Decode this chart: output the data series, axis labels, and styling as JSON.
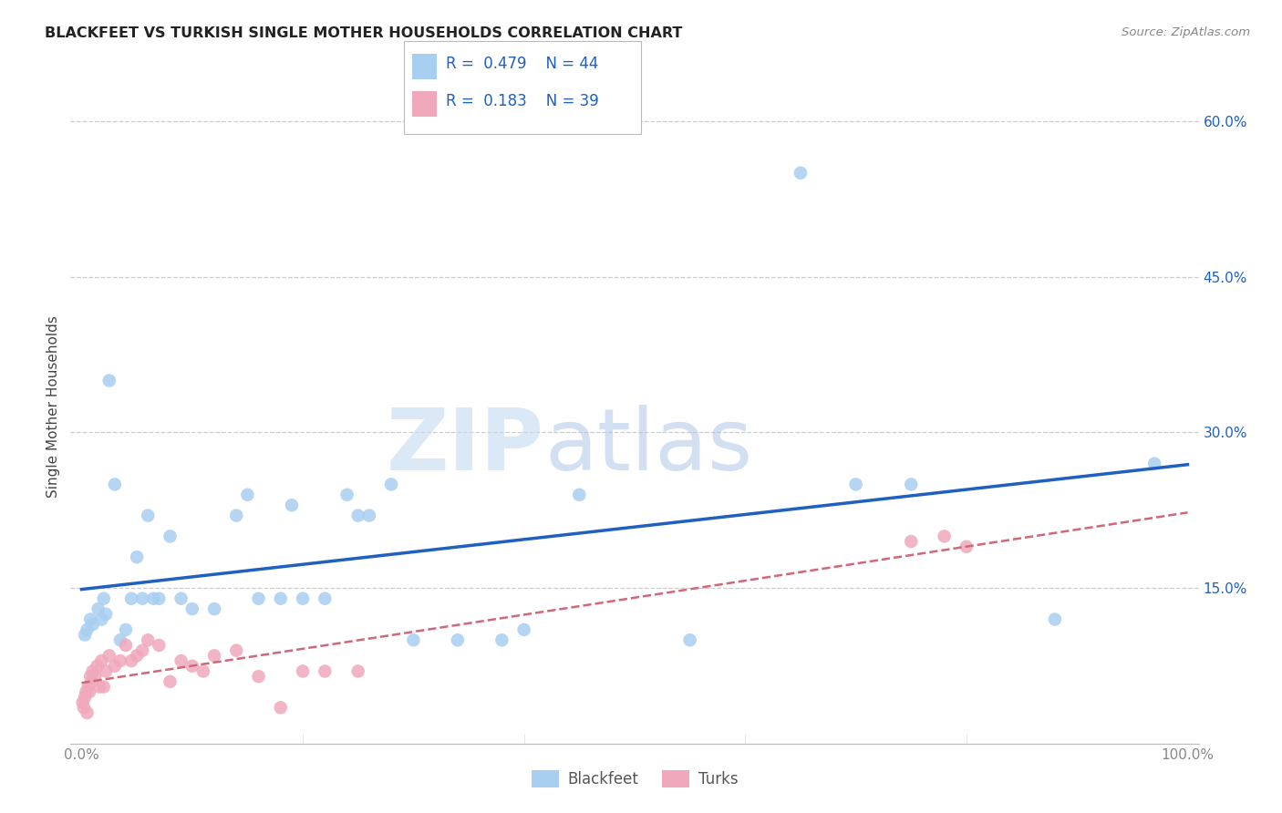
{
  "title": "BLACKFEET VS TURKISH SINGLE MOTHER HOUSEHOLDS CORRELATION CHART",
  "source": "Source: ZipAtlas.com",
  "ylabel": "Single Mother Households",
  "legend_r_blackfeet": "0.479",
  "legend_n_blackfeet": "44",
  "legend_r_turks": "0.183",
  "legend_n_turks": "39",
  "legend_label_blackfeet": "Blackfeet",
  "legend_label_turks": "Turks",
  "blackfeet_color": "#a8cef0",
  "turks_color": "#f0a8bc",
  "line_blue": "#2060c0",
  "line_pink": "#d06878",
  "watermark_zip": "ZIP",
  "watermark_atlas": "atlas",
  "blackfeet_x": [
    0.3,
    0.5,
    0.8,
    1.0,
    1.5,
    1.8,
    2.0,
    2.2,
    2.5,
    3.0,
    3.5,
    4.0,
    4.5,
    5.0,
    5.5,
    6.0,
    6.5,
    7.0,
    8.0,
    9.0,
    10.0,
    12.0,
    14.0,
    15.0,
    16.0,
    18.0,
    19.0,
    20.0,
    22.0,
    24.0,
    25.0,
    26.0,
    28.0,
    30.0,
    34.0,
    38.0,
    40.0,
    45.0,
    55.0,
    65.0,
    70.0,
    75.0,
    88.0,
    97.0
  ],
  "blackfeet_y": [
    10.5,
    11.0,
    12.0,
    11.5,
    13.0,
    12.0,
    14.0,
    12.5,
    35.0,
    25.0,
    10.0,
    11.0,
    14.0,
    18.0,
    14.0,
    22.0,
    14.0,
    14.0,
    20.0,
    14.0,
    13.0,
    13.0,
    22.0,
    24.0,
    14.0,
    14.0,
    23.0,
    14.0,
    14.0,
    24.0,
    22.0,
    22.0,
    25.0,
    10.0,
    10.0,
    10.0,
    11.0,
    24.0,
    10.0,
    55.0,
    25.0,
    25.0,
    12.0,
    27.0
  ],
  "turks_x": [
    0.1,
    0.2,
    0.3,
    0.4,
    0.5,
    0.6,
    0.7,
    0.8,
    0.9,
    1.0,
    1.2,
    1.4,
    1.6,
    1.8,
    2.0,
    2.2,
    2.5,
    3.0,
    3.5,
    4.0,
    4.5,
    5.0,
    5.5,
    6.0,
    7.0,
    8.0,
    9.0,
    10.0,
    11.0,
    12.0,
    14.0,
    16.0,
    18.0,
    20.0,
    22.0,
    25.0,
    75.0,
    78.0,
    80.0
  ],
  "turks_y": [
    4.0,
    3.5,
    4.5,
    5.0,
    3.0,
    5.5,
    5.0,
    6.5,
    6.0,
    7.0,
    6.5,
    7.5,
    5.5,
    8.0,
    5.5,
    7.0,
    8.5,
    7.5,
    8.0,
    9.5,
    8.0,
    8.5,
    9.0,
    10.0,
    9.5,
    6.0,
    8.0,
    7.5,
    7.0,
    8.5,
    9.0,
    6.5,
    3.5,
    7.0,
    7.0,
    7.0,
    19.5,
    20.0,
    19.0
  ],
  "xlim": [
    -1,
    101
  ],
  "ylim": [
    0,
    65
  ],
  "yticks": [
    15,
    30,
    45,
    60
  ],
  "xtick_labels_show": [
    "0.0%",
    "100.0%"
  ],
  "grid_color": "#cccccc",
  "background_color": "#ffffff",
  "title_color": "#222222",
  "accent_color": "#2060c0",
  "tick_color": "#888888"
}
